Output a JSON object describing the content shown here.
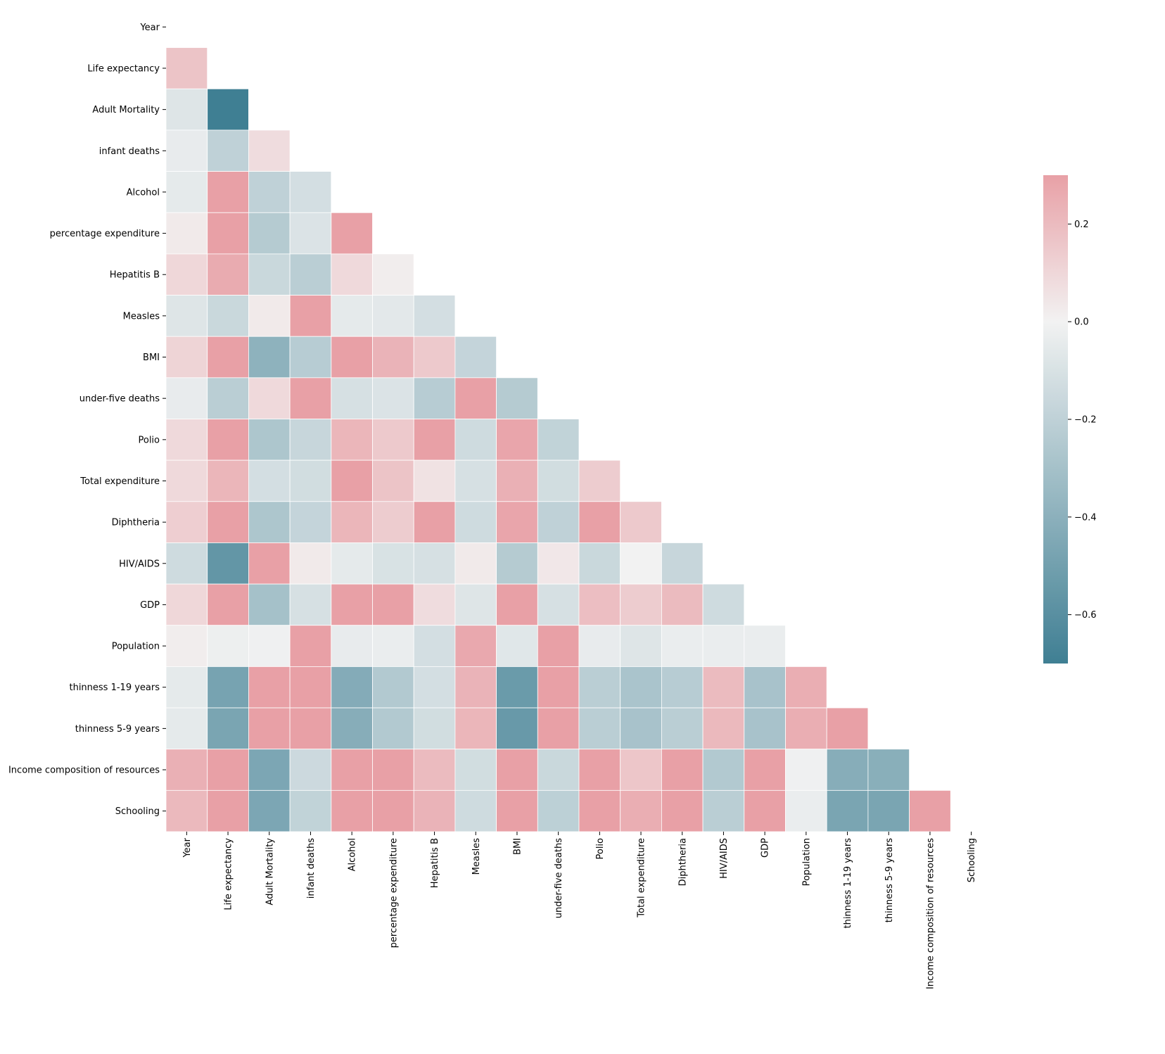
{
  "chart_data": {
    "type": "heatmap",
    "title": "",
    "xlabel": "",
    "ylabel": "",
    "mask": "upper-triangle",
    "labels": [
      "Year",
      "Life expectancy ",
      "Adult Mortality",
      "infant deaths",
      "Alcohol",
      "percentage expenditure",
      "Hepatitis B",
      "Measles ",
      "BMI ",
      "under-five deaths ",
      "Polio",
      "Total expenditure",
      "Diphtheria ",
      "HIV/AIDS",
      "GDP",
      "Population",
      "thinness  1-19 years",
      "thinness 5-9 years",
      "Income composition of resources",
      "Schooling"
    ],
    "lower_triangle": [
      [],
      [
        0.17
      ],
      [
        -0.08,
        -0.7
      ],
      [
        -0.04,
        -0.2,
        0.08
      ],
      [
        -0.05,
        0.4,
        -0.2,
        -0.12
      ],
      [
        0.03,
        0.38,
        -0.24,
        -0.09,
        0.34
      ],
      [
        0.1,
        0.26,
        -0.16,
        -0.22,
        0.09,
        0.02
      ],
      [
        -0.08,
        -0.16,
        0.03,
        0.5,
        -0.05,
        -0.06,
        -0.12
      ],
      [
        0.11,
        0.57,
        -0.39,
        -0.23,
        0.33,
        0.23,
        0.15,
        -0.18
      ],
      [
        -0.04,
        -0.22,
        0.09,
        1.0,
        -0.11,
        -0.09,
        -0.23,
        0.51,
        -0.24
      ],
      [
        0.09,
        0.47,
        -0.27,
        -0.17,
        0.22,
        0.15,
        0.49,
        -0.14,
        0.28,
        -0.19
      ],
      [
        0.09,
        0.22,
        -0.12,
        -0.13,
        0.3,
        0.17,
        0.06,
        -0.11,
        0.24,
        -0.13,
        0.14
      ],
      [
        0.13,
        0.48,
        -0.27,
        -0.18,
        0.22,
        0.14,
        0.61,
        -0.14,
        0.28,
        -0.2,
        0.67,
        0.15
      ],
      [
        -0.14,
        -0.56,
        0.52,
        0.03,
        -0.05,
        -0.1,
        -0.11,
        0.03,
        -0.24,
        0.04,
        -0.16,
        0.0,
        -0.17
      ],
      [
        0.1,
        0.46,
        -0.3,
        -0.11,
        0.35,
        0.9,
        0.08,
        -0.08,
        0.3,
        -0.11,
        0.19,
        0.14,
        0.2,
        -0.14
      ],
      [
        0.02,
        -0.02,
        -0.01,
        0.56,
        -0.04,
        -0.03,
        -0.12,
        0.27,
        -0.07,
        0.55,
        -0.04,
        -0.08,
        -0.03,
        -0.03,
        -0.03
      ],
      [
        -0.05,
        -0.48,
        0.3,
        0.47,
        -0.43,
        -0.25,
        -0.12,
        0.23,
        -0.53,
        0.47,
        -0.22,
        -0.28,
        -0.23,
        0.2,
        -0.29,
        0.25
      ],
      [
        -0.05,
        -0.47,
        0.31,
        0.47,
        -0.42,
        -0.25,
        -0.13,
        0.22,
        -0.54,
        0.47,
        -0.22,
        -0.29,
        -0.22,
        0.21,
        -0.29,
        0.25,
        0.94
      ],
      [
        0.24,
        0.72,
        -0.46,
        -0.15,
        0.45,
        0.38,
        0.2,
        -0.13,
        0.51,
        -0.16,
        0.38,
        0.16,
        0.4,
        -0.25,
        0.46,
        -0.01,
        -0.42,
        -0.41
      ],
      [
        0.21,
        0.75,
        -0.46,
        -0.19,
        0.55,
        0.39,
        0.23,
        -0.14,
        0.55,
        -0.21,
        0.42,
        0.25,
        0.43,
        -0.22,
        0.45,
        -0.03,
        -0.47,
        -0.47,
        0.8
      ]
    ],
    "value_range": [
      -0.7,
      0.3
    ],
    "center": 0,
    "colors": {
      "negative": "#3f7f93",
      "center": "#f2f2f2",
      "positive": "#e8a0a6"
    },
    "colorbar": {
      "ticks": [
        0.2,
        0.0,
        -0.2,
        -0.4,
        -0.6
      ],
      "tick_labels": [
        "0.2",
        "0.0",
        "−0.2",
        "−0.4",
        "−0.6"
      ],
      "range": [
        -0.7,
        0.3
      ]
    },
    "grid": false,
    "legend": "colorbar-right"
  }
}
